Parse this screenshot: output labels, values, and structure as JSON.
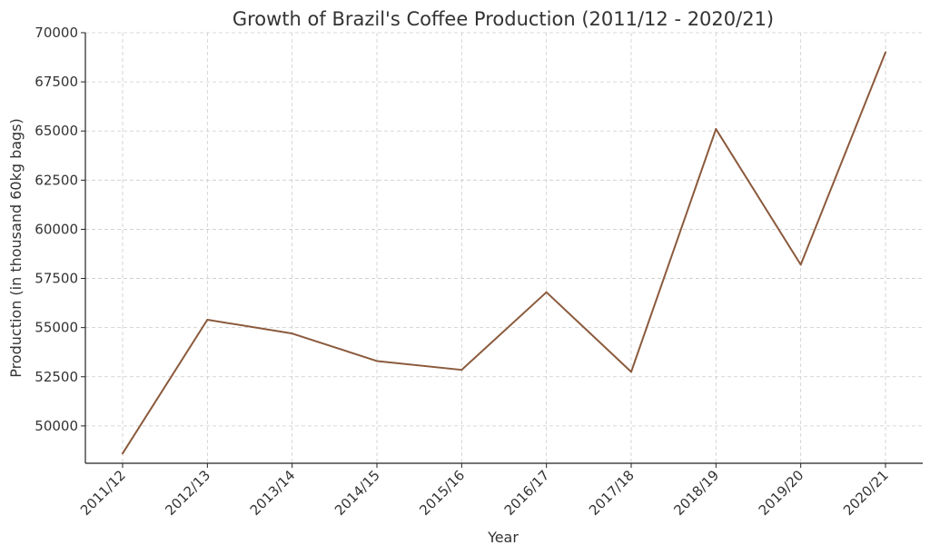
{
  "chart_data": {
    "type": "line",
    "title": "Growth of Brazil's Coffee Production (2011/12 - 2020/21)",
    "xlabel": "Year",
    "ylabel": "Production (in thousand 60kg bags)",
    "categories": [
      "2011/12",
      "2012/13",
      "2013/14",
      "2014/15",
      "2015/16",
      "2016/17",
      "2017/18",
      "2018/19",
      "2019/20",
      "2020/21"
    ],
    "series": [
      {
        "values": [
          48600,
          55400,
          54700,
          53300,
          52850,
          56800,
          52750,
          65100,
          58200,
          69000
        ],
        "color": "#8B5A3C"
      }
    ],
    "ylim": [
      48100,
      70000
    ],
    "yticks": [
      50000,
      52500,
      55000,
      57500,
      60000,
      62500,
      65000,
      67500,
      70000
    ],
    "grid": true,
    "legend": "none"
  }
}
